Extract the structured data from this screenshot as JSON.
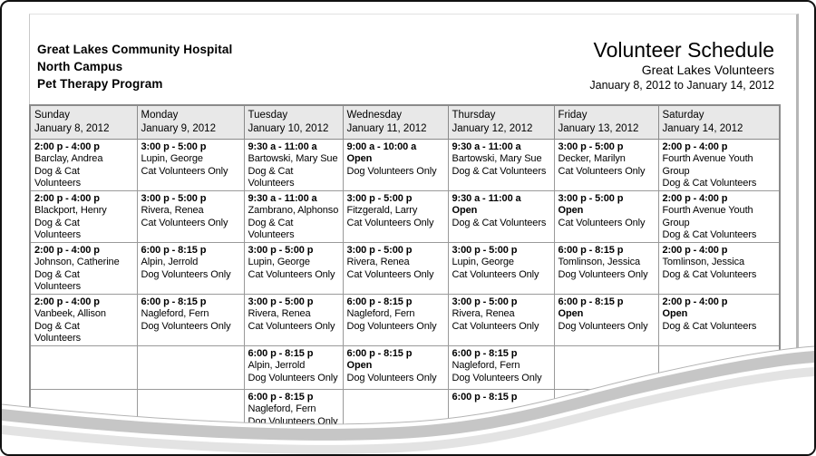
{
  "document": {
    "org_line1": "Great Lakes Community Hospital",
    "org_line2": "North Campus",
    "org_line3": "Pet Therapy Program",
    "title": "Volunteer Schedule",
    "subtitle": "Great Lakes Volunteers",
    "date_range": "January 8, 2012 to January 14, 2012"
  },
  "schedule": {
    "days": [
      {
        "name": "Sunday",
        "date": "January 8, 2012"
      },
      {
        "name": "Monday",
        "date": "January 9, 2012"
      },
      {
        "name": "Tuesday",
        "date": "January 10, 2012"
      },
      {
        "name": "Wednesday",
        "date": "January 11, 2012"
      },
      {
        "name": "Thursday",
        "date": "January 12, 2012"
      },
      {
        "name": "Friday",
        "date": "January 13, 2012"
      },
      {
        "name": "Saturday",
        "date": "January 14, 2012"
      }
    ],
    "rows": [
      [
        {
          "time": "2:00 p - 4:00 p",
          "volunteer": "Barclay, Andrea",
          "category": "Dog & Cat Volunteers",
          "open": false
        },
        {
          "time": "3:00 p - 5:00 p",
          "volunteer": "Lupin, George",
          "category": "Cat Volunteers Only",
          "open": false
        },
        {
          "time": "9:30 a - 11:00 a",
          "volunteer": "Bartowski, Mary Sue",
          "category": "Dog & Cat Volunteers",
          "open": false
        },
        {
          "time": "9:00 a - 10:00 a",
          "volunteer": "Open",
          "category": "Dog Volunteers Only",
          "open": true
        },
        {
          "time": "9:30 a - 11:00 a",
          "volunteer": "Bartowski, Mary Sue",
          "category": "Dog & Cat Volunteers",
          "open": false
        },
        {
          "time": "3:00 p - 5:00 p",
          "volunteer": "Decker, Marilyn",
          "category": "Cat Volunteers Only",
          "open": false
        },
        {
          "time": "2:00 p - 4:00 p",
          "volunteer": "Fourth Avenue Youth Group",
          "category": "Dog & Cat Volunteers",
          "open": false
        }
      ],
      [
        {
          "time": "2:00 p - 4:00 p",
          "volunteer": "Blackport, Henry",
          "category": "Dog & Cat Volunteers",
          "open": false
        },
        {
          "time": "3:00 p - 5:00 p",
          "volunteer": "Rivera, Renea",
          "category": "Cat Volunteers Only",
          "open": false
        },
        {
          "time": "9:30 a - 11:00 a",
          "volunteer": "Zambrano, Alphonso",
          "category": "Dog & Cat Volunteers",
          "open": false
        },
        {
          "time": "3:00 p - 5:00 p",
          "volunteer": "Fitzgerald, Larry",
          "category": "Cat Volunteers Only",
          "open": false
        },
        {
          "time": "9:30 a - 11:00 a",
          "volunteer": "Open",
          "category": "Dog & Cat Volunteers",
          "open": true
        },
        {
          "time": "3:00 p - 5:00 p",
          "volunteer": "Open",
          "category": "Cat Volunteers Only",
          "open": true
        },
        {
          "time": "2:00 p - 4:00 p",
          "volunteer": "Fourth Avenue Youth Group",
          "category": "Dog & Cat Volunteers",
          "open": false
        }
      ],
      [
        {
          "time": "2:00 p - 4:00 p",
          "volunteer": "Johnson, Catherine",
          "category": "Dog & Cat Volunteers",
          "open": false
        },
        {
          "time": "6:00 p - 8:15 p",
          "volunteer": "Alpin, Jerrold",
          "category": "Dog Volunteers Only",
          "open": false
        },
        {
          "time": "3:00 p - 5:00 p",
          "volunteer": "Lupin, George",
          "category": "Cat Volunteers Only",
          "open": false
        },
        {
          "time": "3:00 p - 5:00 p",
          "volunteer": "Rivera, Renea",
          "category": "Cat Volunteers Only",
          "open": false
        },
        {
          "time": "3:00 p - 5:00 p",
          "volunteer": "Lupin, George",
          "category": "Cat Volunteers Only",
          "open": false
        },
        {
          "time": "6:00 p - 8:15 p",
          "volunteer": "Tomlinson, Jessica",
          "category": "Dog Volunteers Only",
          "open": false
        },
        {
          "time": "2:00 p - 4:00 p",
          "volunteer": "Tomlinson, Jessica",
          "category": "Dog & Cat Volunteers",
          "open": false
        }
      ],
      [
        {
          "time": "2:00 p - 4:00 p",
          "volunteer": "Vanbeek, Allison",
          "category": "Dog & Cat Volunteers",
          "open": false
        },
        {
          "time": "6:00 p - 8:15 p",
          "volunteer": "Nagleford, Fern",
          "category": "Dog Volunteers Only",
          "open": false
        },
        {
          "time": "3:00 p - 5:00 p",
          "volunteer": "Rivera, Renea",
          "category": "Cat Volunteers Only",
          "open": false
        },
        {
          "time": "6:00 p - 8:15 p",
          "volunteer": "Nagleford, Fern",
          "category": "Dog Volunteers Only",
          "open": false
        },
        {
          "time": "3:00 p - 5:00 p",
          "volunteer": "Rivera, Renea",
          "category": "Cat Volunteers Only",
          "open": false
        },
        {
          "time": "6:00 p - 8:15 p",
          "volunteer": "Open",
          "category": "Dog Volunteers Only",
          "open": true
        },
        {
          "time": "2:00 p - 4:00 p",
          "volunteer": "Open",
          "category": "Dog & Cat Volunteers",
          "open": true
        }
      ],
      [
        null,
        null,
        {
          "time": "6:00 p - 8:15 p",
          "volunteer": "Alpin, Jerrold",
          "category": "Dog Volunteers Only",
          "open": false
        },
        {
          "time": "6:00 p - 8:15 p",
          "volunteer": "Open",
          "category": "Dog Volunteers Only",
          "open": true
        },
        {
          "time": "6:00 p - 8:15 p",
          "volunteer": "Nagleford, Fern",
          "category": "Dog Volunteers Only",
          "open": false
        },
        null,
        null
      ],
      [
        null,
        null,
        {
          "time": "6:00 p - 8:15 p",
          "volunteer": "Nagleford, Fern",
          "category": "Dog Volunteers Only",
          "open": false
        },
        null,
        {
          "time": "6:00 p - 8:15 p",
          "volunteer": "",
          "category": "",
          "open": false
        },
        null,
        null
      ]
    ]
  },
  "colors": {
    "header_bg": "#e8e8e8",
    "table_border": "#8a8a8a",
    "page_edge": "#bdbdbd",
    "curl_shadow": "#c6c6c6",
    "curl_shadow_light": "#e3e3e3",
    "text": "#000000"
  }
}
